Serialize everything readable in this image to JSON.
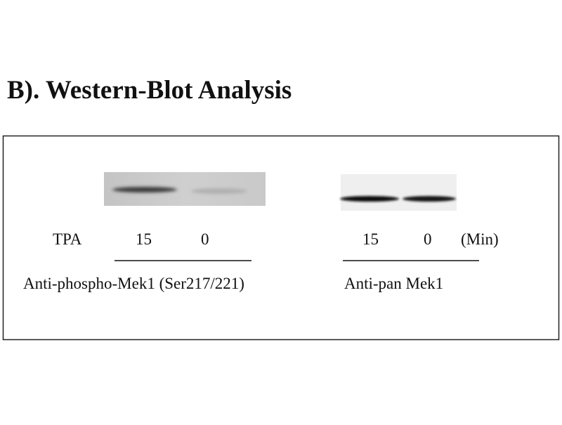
{
  "title": "B). Western-Blot Analysis",
  "panels": [
    {
      "row_label": "TPA",
      "lanes": [
        "15",
        "0"
      ],
      "antibody": "Anti-phospho-Mek1 (Ser217/221)"
    },
    {
      "lanes": [
        "15",
        "0"
      ],
      "unit": "(Min)",
      "antibody": "Anti-pan Mek1"
    }
  ]
}
